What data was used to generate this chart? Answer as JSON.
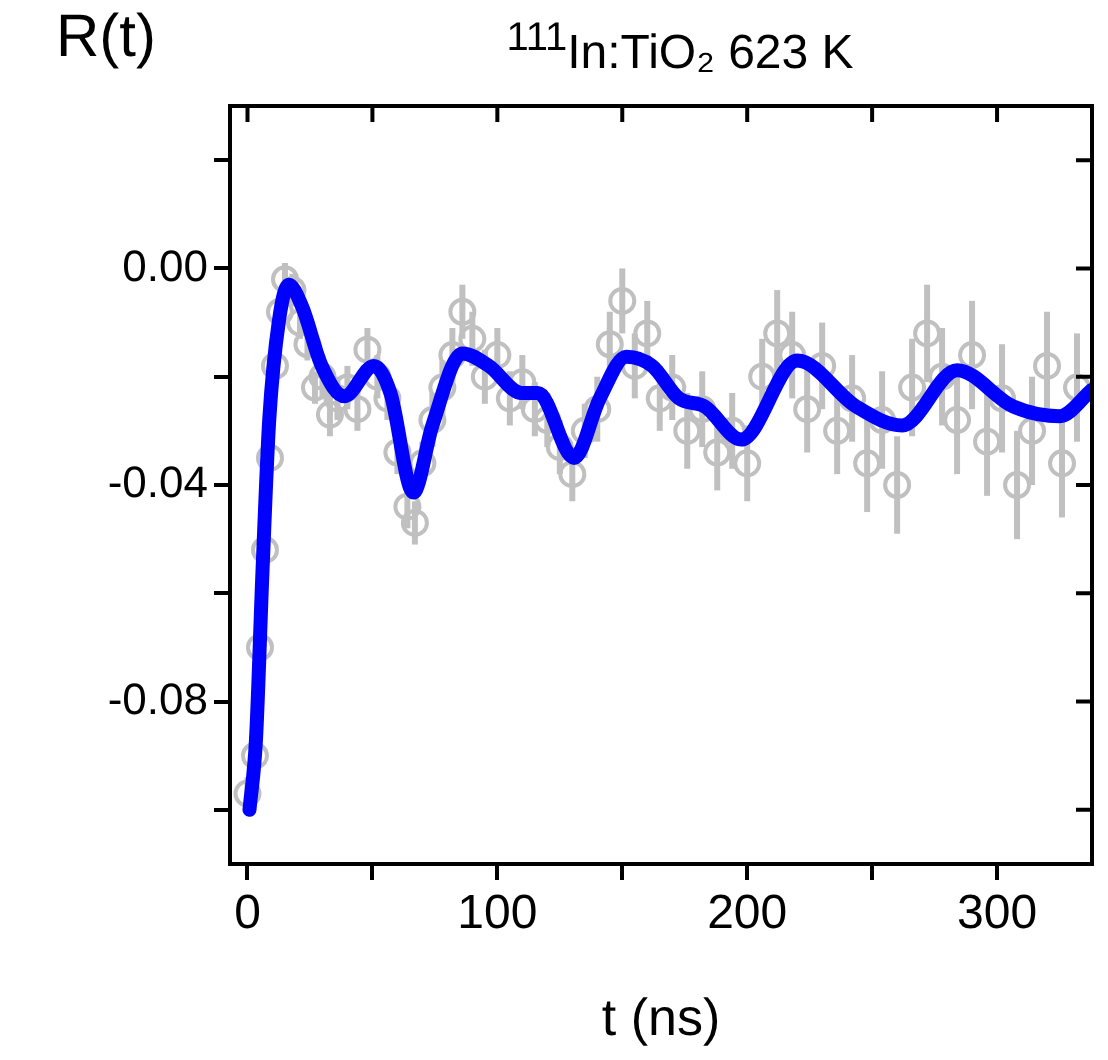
{
  "chart_data": {
    "type": "scatter",
    "title": "$^{111}$In:TiO₂ 623 K",
    "xlabel": "t (ns)",
    "ylabel": "R(t)",
    "xlim": [
      -7,
      338
    ],
    "xticks": [
      0,
      {
        "value": 50,
        "label": null
      },
      100,
      {
        "value": 150,
        "label": null
      },
      200,
      {
        "value": 250,
        "label": null
      },
      300
    ],
    "ylim": [
      -0.11,
      0.03
    ],
    "yticks": [
      {
        "value": -0.1,
        "label": null
      },
      {
        "value": -0.08,
        "label": "-0.08"
      },
      {
        "value": -0.06,
        "label": null
      },
      {
        "value": -0.04,
        "label": "-0.04"
      },
      {
        "value": -0.02,
        "label": null
      },
      {
        "value": 0,
        "label": "0.00"
      },
      {
        "value": 0.02,
        "label": null
      }
    ],
    "grid": false,
    "legend": false,
    "series": [
      {
        "type": "scatter",
        "marker": "circle",
        "color": "#c0c0c0",
        "x": [
          0,
          3,
          5,
          7,
          9,
          11,
          13,
          15,
          18,
          21,
          24,
          27,
          30,
          33,
          36,
          40,
          44,
          48,
          52,
          56,
          60,
          64,
          67,
          70,
          74,
          78,
          82,
          86,
          90,
          95,
          100,
          105,
          110,
          115,
          120,
          125,
          130,
          135,
          140,
          145,
          150,
          155,
          160,
          165,
          170,
          176,
          182,
          188,
          194,
          200,
          206,
          212,
          218,
          224,
          230,
          236,
          242,
          248,
          254,
          260,
          266,
          272,
          278,
          284,
          290,
          296,
          302,
          308,
          314,
          320,
          326,
          332
        ],
        "values": [
          -0.097,
          -0.09,
          -0.07,
          -0.052,
          -0.035,
          -0.018,
          -0.008,
          -0.002,
          -0.004,
          -0.01,
          -0.014,
          -0.022,
          -0.02,
          -0.027,
          -0.024,
          -0.022,
          -0.026,
          -0.015,
          -0.02,
          -0.024,
          -0.034,
          -0.044,
          -0.047,
          -0.036,
          -0.028,
          -0.022,
          -0.016,
          -0.008,
          -0.013,
          -0.02,
          -0.016,
          -0.024,
          -0.021,
          -0.026,
          -0.028,
          -0.033,
          -0.038,
          -0.03,
          -0.026,
          -0.014,
          -0.006,
          -0.018,
          -0.012,
          -0.024,
          -0.022,
          -0.03,
          -0.026,
          -0.034,
          -0.03,
          -0.036,
          -0.02,
          -0.012,
          -0.016,
          -0.026,
          -0.018,
          -0.03,
          -0.024,
          -0.036,
          -0.028,
          -0.04,
          -0.022,
          -0.012,
          -0.02,
          -0.028,
          -0.016,
          -0.032,
          -0.024,
          -0.04,
          -0.03,
          -0.018,
          -0.036,
          -0.022
        ],
        "errors": [
          0.003,
          null,
          null,
          null,
          null,
          null,
          null,
          0.003,
          0.003,
          0.003,
          0.003,
          0.003,
          0.004,
          0.004,
          0.004,
          0.004,
          0.004,
          0.004,
          0.004,
          0.004,
          0.004,
          0.004,
          0.004,
          0.004,
          0.005,
          0.005,
          0.005,
          0.005,
          0.005,
          0.005,
          0.005,
          0.005,
          0.005,
          0.005,
          0.005,
          0.005,
          0.005,
          0.005,
          0.006,
          0.006,
          0.006,
          0.006,
          0.006,
          0.006,
          0.006,
          0.007,
          0.007,
          0.007,
          0.007,
          0.007,
          0.007,
          0.008,
          0.008,
          0.008,
          0.008,
          0.008,
          0.008,
          0.009,
          0.009,
          0.009,
          0.009,
          0.009,
          0.009,
          0.01,
          0.01,
          0.01,
          0.01,
          0.01,
          0.01,
          0.01,
          0.01,
          0.01
        ]
      },
      {
        "type": "line",
        "marker": "none",
        "color": "#0000ff",
        "x": [
          0.8,
          3.4,
          6,
          8.7,
          12.6,
          16.5,
          21.8,
          29.7,
          38.8,
          50.6,
          57.2,
          66.4,
          74,
          86,
          96.6,
          109.7,
          116.3,
          130.7,
          141,
          151.7,
          162,
          172.7,
          183,
          197.6,
          220,
          243.6,
          262,
          284,
          306.5,
          325,
          338
        ],
        "values": [
          -0.1,
          -0.087,
          -0.056,
          -0.028,
          -0.0096,
          -0.003,
          -0.007,
          -0.018,
          -0.0236,
          -0.018,
          -0.023,
          -0.0414,
          -0.029,
          -0.0157,
          -0.018,
          -0.023,
          -0.023,
          -0.035,
          -0.024,
          -0.0163,
          -0.018,
          -0.024,
          -0.0255,
          -0.0316,
          -0.017,
          -0.0255,
          -0.029,
          -0.0188,
          -0.0255,
          -0.0273,
          -0.0224
        ]
      }
    ]
  }
}
